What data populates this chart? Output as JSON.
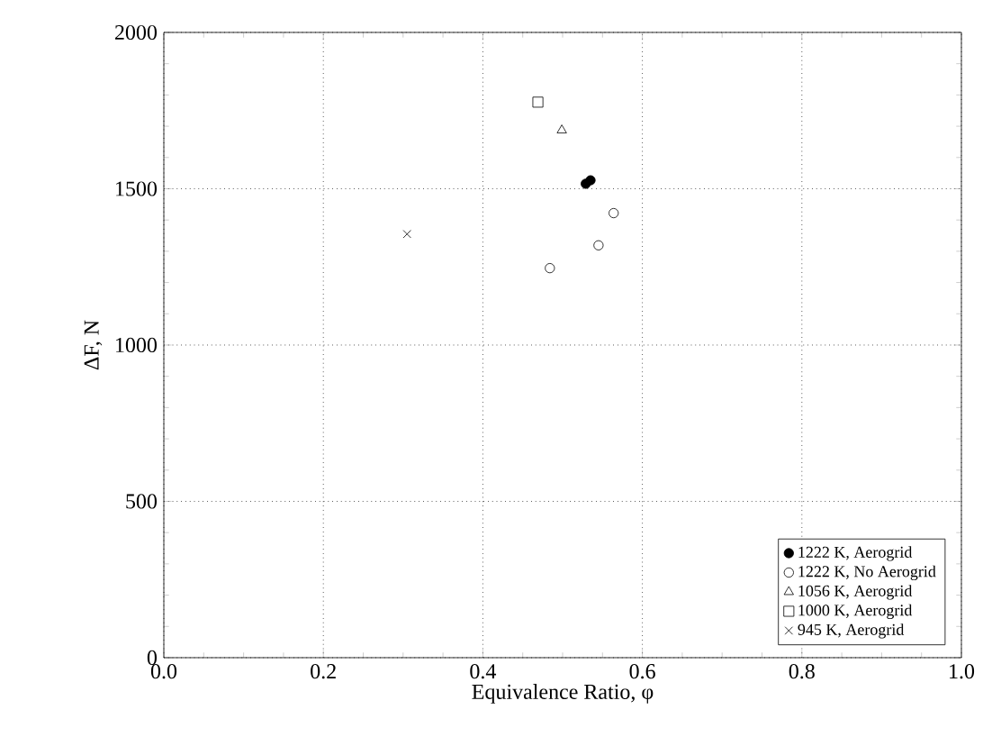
{
  "chart_data": {
    "type": "scatter",
    "xlabel": "Equivalence Ratio, φ",
    "ylabel": "ΔF, N",
    "xlim": [
      0,
      1
    ],
    "ylim": [
      0,
      2000
    ],
    "xticks": [
      {
        "value": 0,
        "label": "0.0"
      },
      0.2,
      0.4,
      0.6,
      0.8,
      {
        "value": 1,
        "label": "1.0"
      }
    ],
    "yticks": [
      0,
      500,
      1000,
      1500,
      2000
    ],
    "grid": true,
    "legend": "bottom right",
    "series": [
      {
        "name": "1222 K, Aerogrid",
        "color": "#000000",
        "marker": "circle",
        "x": [
          0.529,
          0.535
        ],
        "values": [
          1516,
          1527
        ]
      },
      {
        "name": "1222 K,  No Aerogrid",
        "color": "#000000",
        "marker": "circle open",
        "x": [
          0.564,
          0.545,
          0.484
        ],
        "values": [
          1422,
          1319,
          1246
        ]
      },
      {
        "name": "1056 K, Aerogrid",
        "color": "#000000",
        "marker": "triangle",
        "x": [
          0.499
        ],
        "values": [
          1687
        ]
      },
      {
        "name": "1000 K, Aerogrid",
        "color": "#000000",
        "marker": "square",
        "x": [
          0.469
        ],
        "values": [
          1777
        ]
      },
      {
        "name": "945 K, Aerogrid",
        "color": "#000000",
        "marker": "cross",
        "x": [
          0.305
        ],
        "values": [
          1355
        ]
      }
    ]
  }
}
